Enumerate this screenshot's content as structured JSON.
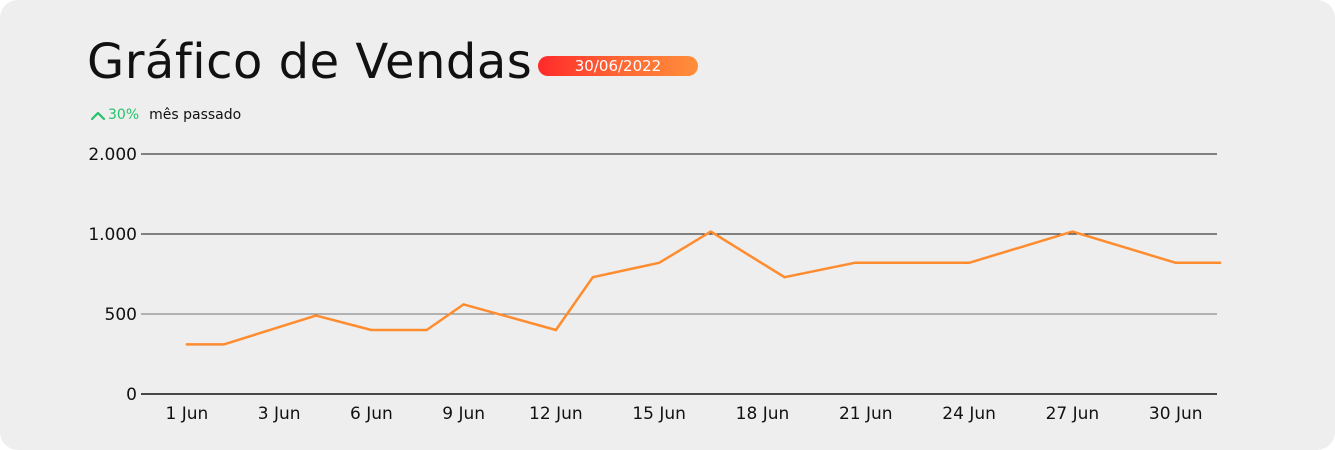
{
  "header": {
    "title": "Gráfico de Vendas",
    "date_badge": "30/06/2022",
    "trend_value": "30%",
    "trend_label": "mês passado",
    "trend_icon": "chevron-up-icon"
  },
  "colors": {
    "background": "#eeeeee",
    "line": "#ff8c2f",
    "badge_start": "#ff2a2a",
    "badge_end": "#ff8f3a",
    "trend_up": "#26c26a",
    "grid": "#111111",
    "grid_mid": "#777777"
  },
  "chart_data": {
    "type": "line",
    "title": "",
    "xlabel": "",
    "ylabel": "",
    "ylim": [
      0,
      2000
    ],
    "y_ticks": [
      0,
      500,
      1000,
      2000
    ],
    "y_tick_labels": [
      "0",
      "500",
      "1.000",
      "2.000"
    ],
    "x_tick_labels": [
      "1 Jun",
      "3 Jun",
      "6 Jun",
      "9 Jun",
      "12 Jun",
      "15 Jun",
      "18 Jun",
      "21 Jun",
      "24 Jun",
      "27 Jun",
      "30 Jun"
    ],
    "x_tick_days": [
      1,
      3.5,
      6,
      8.5,
      11,
      13.8,
      16.6,
      19.4,
      22.2,
      25,
      27.8
    ],
    "x_range": [
      0,
      29
    ],
    "grid": true,
    "legend": "none",
    "series": [
      {
        "x": [
          1,
          2,
          4.5,
          6,
          7.5,
          8.5,
          11,
          12,
          13.8,
          15.2,
          17.2,
          19.1,
          20.4,
          22.2,
          25,
          27.8,
          29
        ],
        "values": [
          310,
          310,
          490,
          400,
          400,
          560,
          400,
          730,
          820,
          1030,
          730,
          820,
          820,
          820,
          1030,
          820,
          820
        ]
      }
    ]
  }
}
